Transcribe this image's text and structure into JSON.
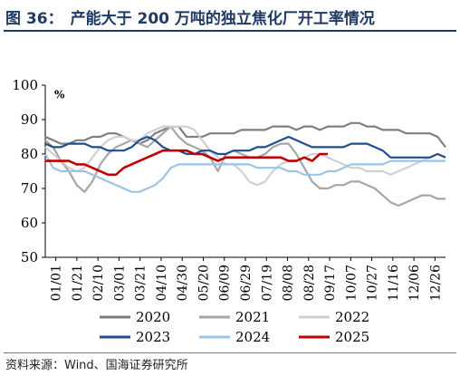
{
  "figure": {
    "number": "图 36：",
    "title": "产能大于 200 万吨的独立焦化厂开工率情况",
    "source": "资料来源：Wind、国海证券研究所"
  },
  "chart_data": {
    "type": "line",
    "title": "",
    "xlabel": "",
    "ylabel": "%",
    "ylim": [
      50,
      100
    ],
    "yticks": [
      50,
      60,
      70,
      80,
      90,
      100
    ],
    "x_ticks": [
      "01/01",
      "01/21",
      "02/10",
      "03/01",
      "03/21",
      "04/10",
      "04/30",
      "05/20",
      "06/09",
      "06/29",
      "07/19",
      "08/08",
      "08/28",
      "09/17",
      "10/07",
      "10/27",
      "11/16",
      "12/06",
      "12/26"
    ],
    "x_domain": [
      0,
      51
    ],
    "grid": false,
    "legend_position": "bottom",
    "series": [
      {
        "name": "2020",
        "color": "#7f7f7f",
        "points": [
          [
            0,
            85
          ],
          [
            1,
            84
          ],
          [
            2,
            83
          ],
          [
            3,
            83
          ],
          [
            4,
            84
          ],
          [
            5,
            84
          ],
          [
            6,
            85
          ],
          [
            7,
            85
          ],
          [
            8,
            86
          ],
          [
            9,
            86
          ],
          [
            10,
            85
          ],
          [
            11,
            84
          ],
          [
            12,
            83
          ],
          [
            13,
            84
          ],
          [
            14,
            86
          ],
          [
            15,
            87
          ],
          [
            16,
            88
          ],
          [
            17,
            88
          ],
          [
            18,
            85
          ],
          [
            19,
            85
          ],
          [
            20,
            85
          ],
          [
            21,
            86
          ],
          [
            22,
            86
          ],
          [
            23,
            86
          ],
          [
            24,
            86
          ],
          [
            25,
            87
          ],
          [
            26,
            87
          ],
          [
            27,
            87
          ],
          [
            28,
            87
          ],
          [
            29,
            88
          ],
          [
            30,
            88
          ],
          [
            31,
            88
          ],
          [
            32,
            87
          ],
          [
            33,
            88
          ],
          [
            34,
            88
          ],
          [
            35,
            87
          ],
          [
            36,
            88
          ],
          [
            37,
            88
          ],
          [
            38,
            88
          ],
          [
            39,
            89
          ],
          [
            40,
            89
          ],
          [
            41,
            88
          ],
          [
            42,
            88
          ],
          [
            43,
            87
          ],
          [
            44,
            87
          ],
          [
            45,
            87
          ],
          [
            46,
            86
          ],
          [
            47,
            86
          ],
          [
            48,
            86
          ],
          [
            49,
            86
          ],
          [
            50,
            85
          ],
          [
            51,
            82
          ]
        ]
      },
      {
        "name": "2021",
        "color": "#a6a6a6",
        "points": [
          [
            0,
            84
          ],
          [
            1,
            82
          ],
          [
            2,
            78
          ],
          [
            3,
            75
          ],
          [
            4,
            71
          ],
          [
            5,
            69
          ],
          [
            6,
            72
          ],
          [
            7,
            77
          ],
          [
            8,
            80
          ],
          [
            9,
            82
          ],
          [
            10,
            83
          ],
          [
            11,
            84
          ],
          [
            12,
            83
          ],
          [
            13,
            82
          ],
          [
            14,
            84
          ],
          [
            15,
            86
          ],
          [
            16,
            88
          ],
          [
            17,
            85
          ],
          [
            18,
            83
          ],
          [
            19,
            82
          ],
          [
            20,
            81
          ],
          [
            21,
            79
          ],
          [
            22,
            75
          ],
          [
            23,
            80
          ],
          [
            24,
            81
          ],
          [
            25,
            80
          ],
          [
            26,
            79
          ],
          [
            27,
            79
          ],
          [
            28,
            80
          ],
          [
            29,
            82
          ],
          [
            30,
            83
          ],
          [
            31,
            83
          ],
          [
            32,
            80
          ],
          [
            33,
            76
          ],
          [
            34,
            72
          ],
          [
            35,
            70
          ],
          [
            36,
            70
          ],
          [
            37,
            71
          ],
          [
            38,
            71
          ],
          [
            39,
            72
          ],
          [
            40,
            72
          ],
          [
            41,
            71
          ],
          [
            42,
            70
          ],
          [
            43,
            68
          ],
          [
            44,
            66
          ],
          [
            45,
            65
          ],
          [
            46,
            66
          ],
          [
            47,
            67
          ],
          [
            48,
            68
          ],
          [
            49,
            68
          ],
          [
            50,
            67
          ],
          [
            51,
            67
          ]
        ]
      },
      {
        "name": "2022",
        "color": "#d0d0d0",
        "points": [
          [
            0,
            82
          ],
          [
            1,
            80
          ],
          [
            2,
            78
          ],
          [
            3,
            76
          ],
          [
            4,
            75
          ],
          [
            5,
            76
          ],
          [
            6,
            79
          ],
          [
            7,
            82
          ],
          [
            8,
            84
          ],
          [
            9,
            85
          ],
          [
            10,
            85
          ],
          [
            11,
            84
          ],
          [
            12,
            84
          ],
          [
            13,
            86
          ],
          [
            14,
            87
          ],
          [
            15,
            88
          ],
          [
            16,
            88
          ],
          [
            17,
            88
          ],
          [
            18,
            88
          ],
          [
            19,
            87
          ],
          [
            20,
            84
          ],
          [
            21,
            81
          ],
          [
            22,
            79
          ],
          [
            23,
            77
          ],
          [
            24,
            77
          ],
          [
            25,
            75
          ],
          [
            26,
            72
          ],
          [
            27,
            71
          ],
          [
            28,
            72
          ],
          [
            29,
            75
          ],
          [
            30,
            77
          ],
          [
            31,
            78
          ],
          [
            32,
            78
          ],
          [
            33,
            79
          ],
          [
            34,
            80
          ],
          [
            35,
            80
          ],
          [
            36,
            79
          ],
          [
            37,
            78
          ],
          [
            38,
            77
          ],
          [
            39,
            76
          ],
          [
            40,
            76
          ],
          [
            41,
            75
          ],
          [
            42,
            75
          ],
          [
            43,
            75
          ],
          [
            44,
            74
          ],
          [
            45,
            75
          ],
          [
            46,
            76
          ],
          [
            47,
            77
          ],
          [
            48,
            78
          ],
          [
            49,
            79
          ],
          [
            50,
            80
          ],
          [
            51,
            79
          ]
        ]
      },
      {
        "name": "2023",
        "color": "#1f4e8c",
        "points": [
          [
            0,
            83
          ],
          [
            1,
            82
          ],
          [
            2,
            82
          ],
          [
            3,
            83
          ],
          [
            4,
            83
          ],
          [
            5,
            83
          ],
          [
            6,
            82
          ],
          [
            7,
            82
          ],
          [
            8,
            81
          ],
          [
            9,
            81
          ],
          [
            10,
            81
          ],
          [
            11,
            82
          ],
          [
            12,
            84
          ],
          [
            13,
            85
          ],
          [
            14,
            84
          ],
          [
            15,
            82
          ],
          [
            16,
            81
          ],
          [
            17,
            81
          ],
          [
            18,
            80
          ],
          [
            19,
            80
          ],
          [
            20,
            81
          ],
          [
            21,
            81
          ],
          [
            22,
            80
          ],
          [
            23,
            80
          ],
          [
            24,
            81
          ],
          [
            25,
            81
          ],
          [
            26,
            81
          ],
          [
            27,
            82
          ],
          [
            28,
            82
          ],
          [
            29,
            83
          ],
          [
            30,
            84
          ],
          [
            31,
            85
          ],
          [
            32,
            84
          ],
          [
            33,
            83
          ],
          [
            34,
            82
          ],
          [
            35,
            82
          ],
          [
            36,
            82
          ],
          [
            37,
            82
          ],
          [
            38,
            82
          ],
          [
            39,
            83
          ],
          [
            40,
            83
          ],
          [
            41,
            83
          ],
          [
            42,
            82
          ],
          [
            43,
            81
          ],
          [
            44,
            79
          ],
          [
            45,
            79
          ],
          [
            46,
            79
          ],
          [
            47,
            79
          ],
          [
            48,
            79
          ],
          [
            49,
            79
          ],
          [
            50,
            80
          ],
          [
            51,
            79
          ]
        ]
      },
      {
        "name": "2024",
        "color": "#9dc3e6",
        "points": [
          [
            0,
            80
          ],
          [
            1,
            76
          ],
          [
            2,
            75
          ],
          [
            3,
            75
          ],
          [
            4,
            75
          ],
          [
            5,
            75
          ],
          [
            6,
            74
          ],
          [
            7,
            73
          ],
          [
            8,
            72
          ],
          [
            9,
            71
          ],
          [
            10,
            70
          ],
          [
            11,
            69
          ],
          [
            12,
            69
          ],
          [
            13,
            70
          ],
          [
            14,
            71
          ],
          [
            15,
            73
          ],
          [
            16,
            76
          ],
          [
            17,
            77
          ],
          [
            18,
            77
          ],
          [
            19,
            77
          ],
          [
            20,
            77
          ],
          [
            21,
            77
          ],
          [
            22,
            77
          ],
          [
            23,
            77
          ],
          [
            24,
            77
          ],
          [
            25,
            77
          ],
          [
            26,
            77
          ],
          [
            27,
            76
          ],
          [
            28,
            76
          ],
          [
            29,
            76
          ],
          [
            30,
            76
          ],
          [
            31,
            75
          ],
          [
            32,
            75
          ],
          [
            33,
            74
          ],
          [
            34,
            74
          ],
          [
            35,
            74
          ],
          [
            36,
            75
          ],
          [
            37,
            75
          ],
          [
            38,
            76
          ],
          [
            39,
            77
          ],
          [
            40,
            77
          ],
          [
            41,
            77
          ],
          [
            42,
            77
          ],
          [
            43,
            77
          ],
          [
            44,
            78
          ],
          [
            45,
            78
          ],
          [
            46,
            78
          ],
          [
            47,
            78
          ],
          [
            48,
            78
          ],
          [
            49,
            78
          ],
          [
            50,
            78
          ],
          [
            51,
            78
          ]
        ]
      },
      {
        "name": "2025",
        "color": "#c00000",
        "points": [
          [
            0,
            78
          ],
          [
            1,
            78
          ],
          [
            2,
            78
          ],
          [
            3,
            78
          ],
          [
            4,
            77
          ],
          [
            5,
            77
          ],
          [
            6,
            76
          ],
          [
            7,
            75
          ],
          [
            8,
            74
          ],
          [
            9,
            74
          ],
          [
            10,
            76
          ],
          [
            11,
            77
          ],
          [
            12,
            78
          ],
          [
            13,
            79
          ],
          [
            14,
            80
          ],
          [
            15,
            81
          ],
          [
            16,
            81
          ],
          [
            17,
            81
          ],
          [
            18,
            81
          ],
          [
            19,
            80
          ],
          [
            20,
            80
          ],
          [
            21,
            79
          ],
          [
            22,
            78
          ],
          [
            23,
            79
          ],
          [
            24,
            79
          ],
          [
            25,
            79
          ],
          [
            26,
            79
          ],
          [
            27,
            79
          ],
          [
            28,
            79
          ],
          [
            29,
            79
          ],
          [
            30,
            79
          ],
          [
            31,
            78
          ],
          [
            32,
            78
          ],
          [
            33,
            79
          ],
          [
            34,
            78
          ],
          [
            35,
            80
          ],
          [
            36,
            80
          ]
        ]
      }
    ]
  }
}
